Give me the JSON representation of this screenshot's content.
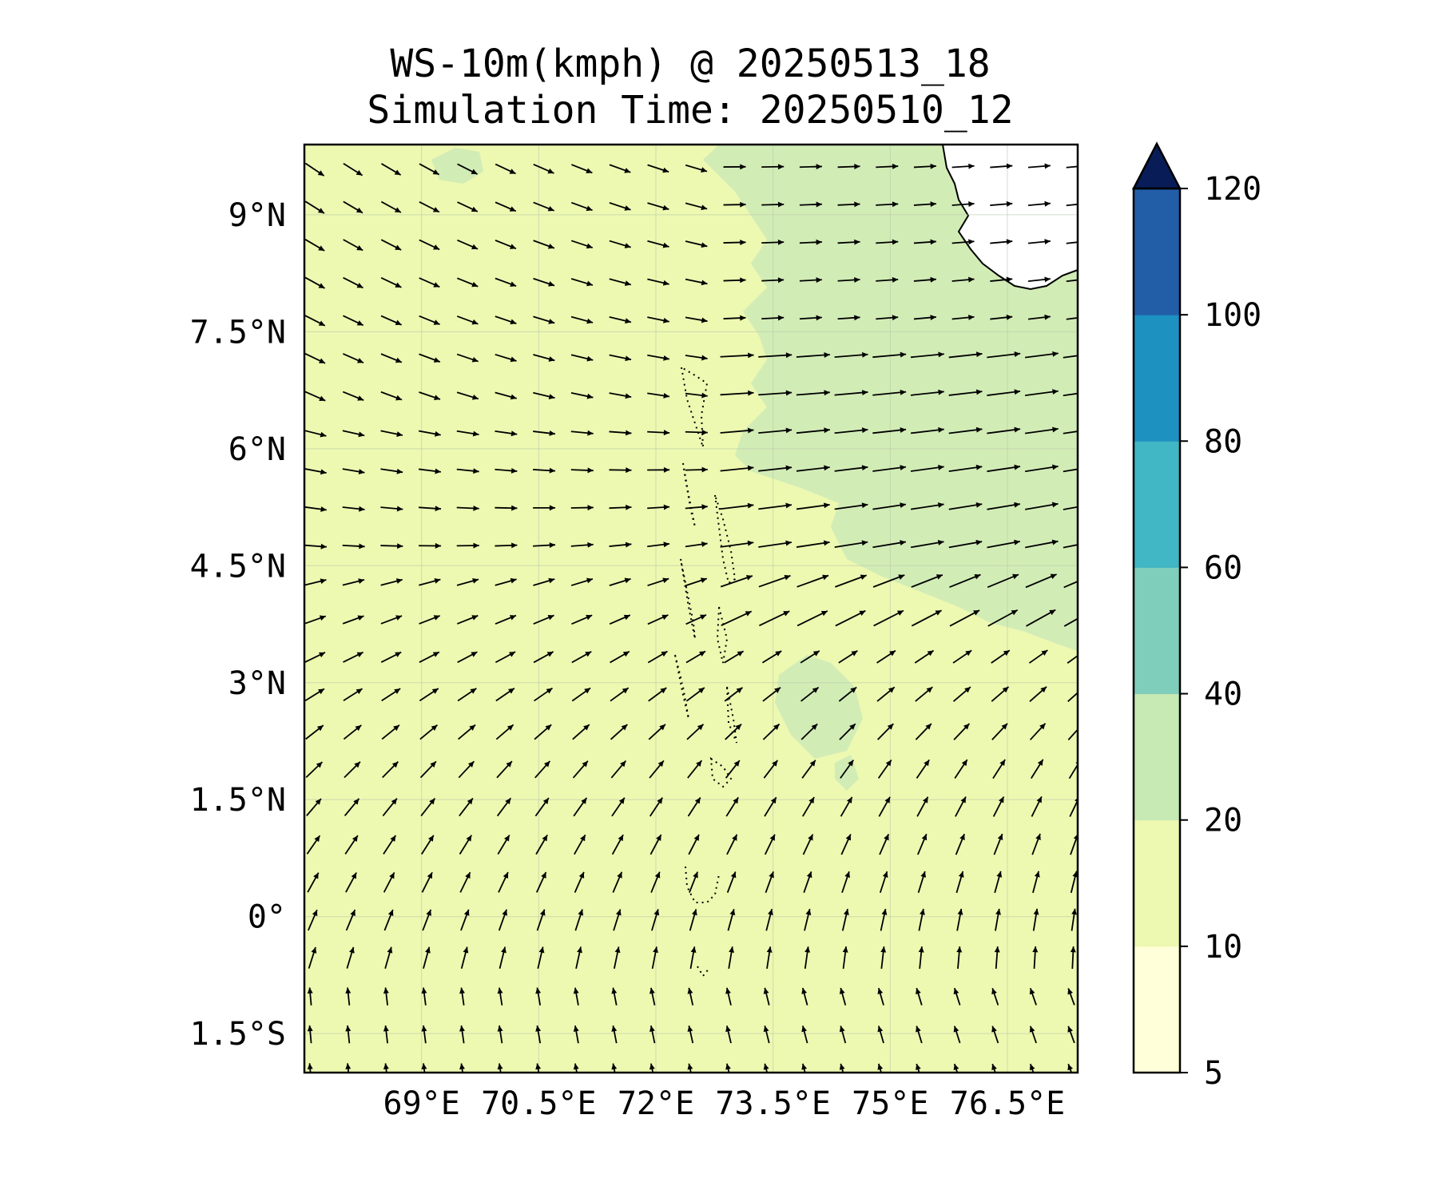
{
  "title": {
    "line1": "WS-10m(kmph) @ 20250513_18",
    "line2": "Simulation Time: 20250510_12"
  },
  "map": {
    "lon_range": [
      67.5,
      77.4
    ],
    "lat_range": [
      -2.0,
      9.9
    ],
    "lon_ticks": [
      {
        "value": 69.0,
        "label": "69°E"
      },
      {
        "value": 70.5,
        "label": "70.5°E"
      },
      {
        "value": 72.0,
        "label": "72°E"
      },
      {
        "value": 73.5,
        "label": "73.5°E"
      },
      {
        "value": 75.0,
        "label": "75°E"
      },
      {
        "value": 76.5,
        "label": "76.5°E"
      }
    ],
    "lat_ticks": [
      {
        "value": 9.0,
        "label": "9°N"
      },
      {
        "value": 7.5,
        "label": "7.5°N"
      },
      {
        "value": 6.0,
        "label": "6°N"
      },
      {
        "value": 4.5,
        "label": "4.5°N"
      },
      {
        "value": 3.0,
        "label": "3°N"
      },
      {
        "value": 1.5,
        "label": "1.5°N"
      },
      {
        "value": 0.0,
        "label": "0°"
      },
      {
        "value": -1.5,
        "label": "1.5°S"
      }
    ],
    "gridlines": true
  },
  "colorbar": {
    "levels": [
      5,
      10,
      20,
      40,
      60,
      80,
      100,
      120
    ],
    "labels": [
      "5",
      "10",
      "20",
      "40",
      "60",
      "80",
      "100",
      "120"
    ],
    "colors": [
      "#ffffd9",
      "#edf8b1",
      "#c7e9b4",
      "#7fcdbb",
      "#41b6c4",
      "#1d91c0",
      "#225ea8",
      "#0c2c84"
    ],
    "extend_color": "#081d58",
    "extend": "max"
  },
  "field_colors": {
    "background": "#edf8b1",
    "light_green": "#d2ecb6",
    "land": "#ffffff",
    "near_white": "#fafde8"
  }
}
